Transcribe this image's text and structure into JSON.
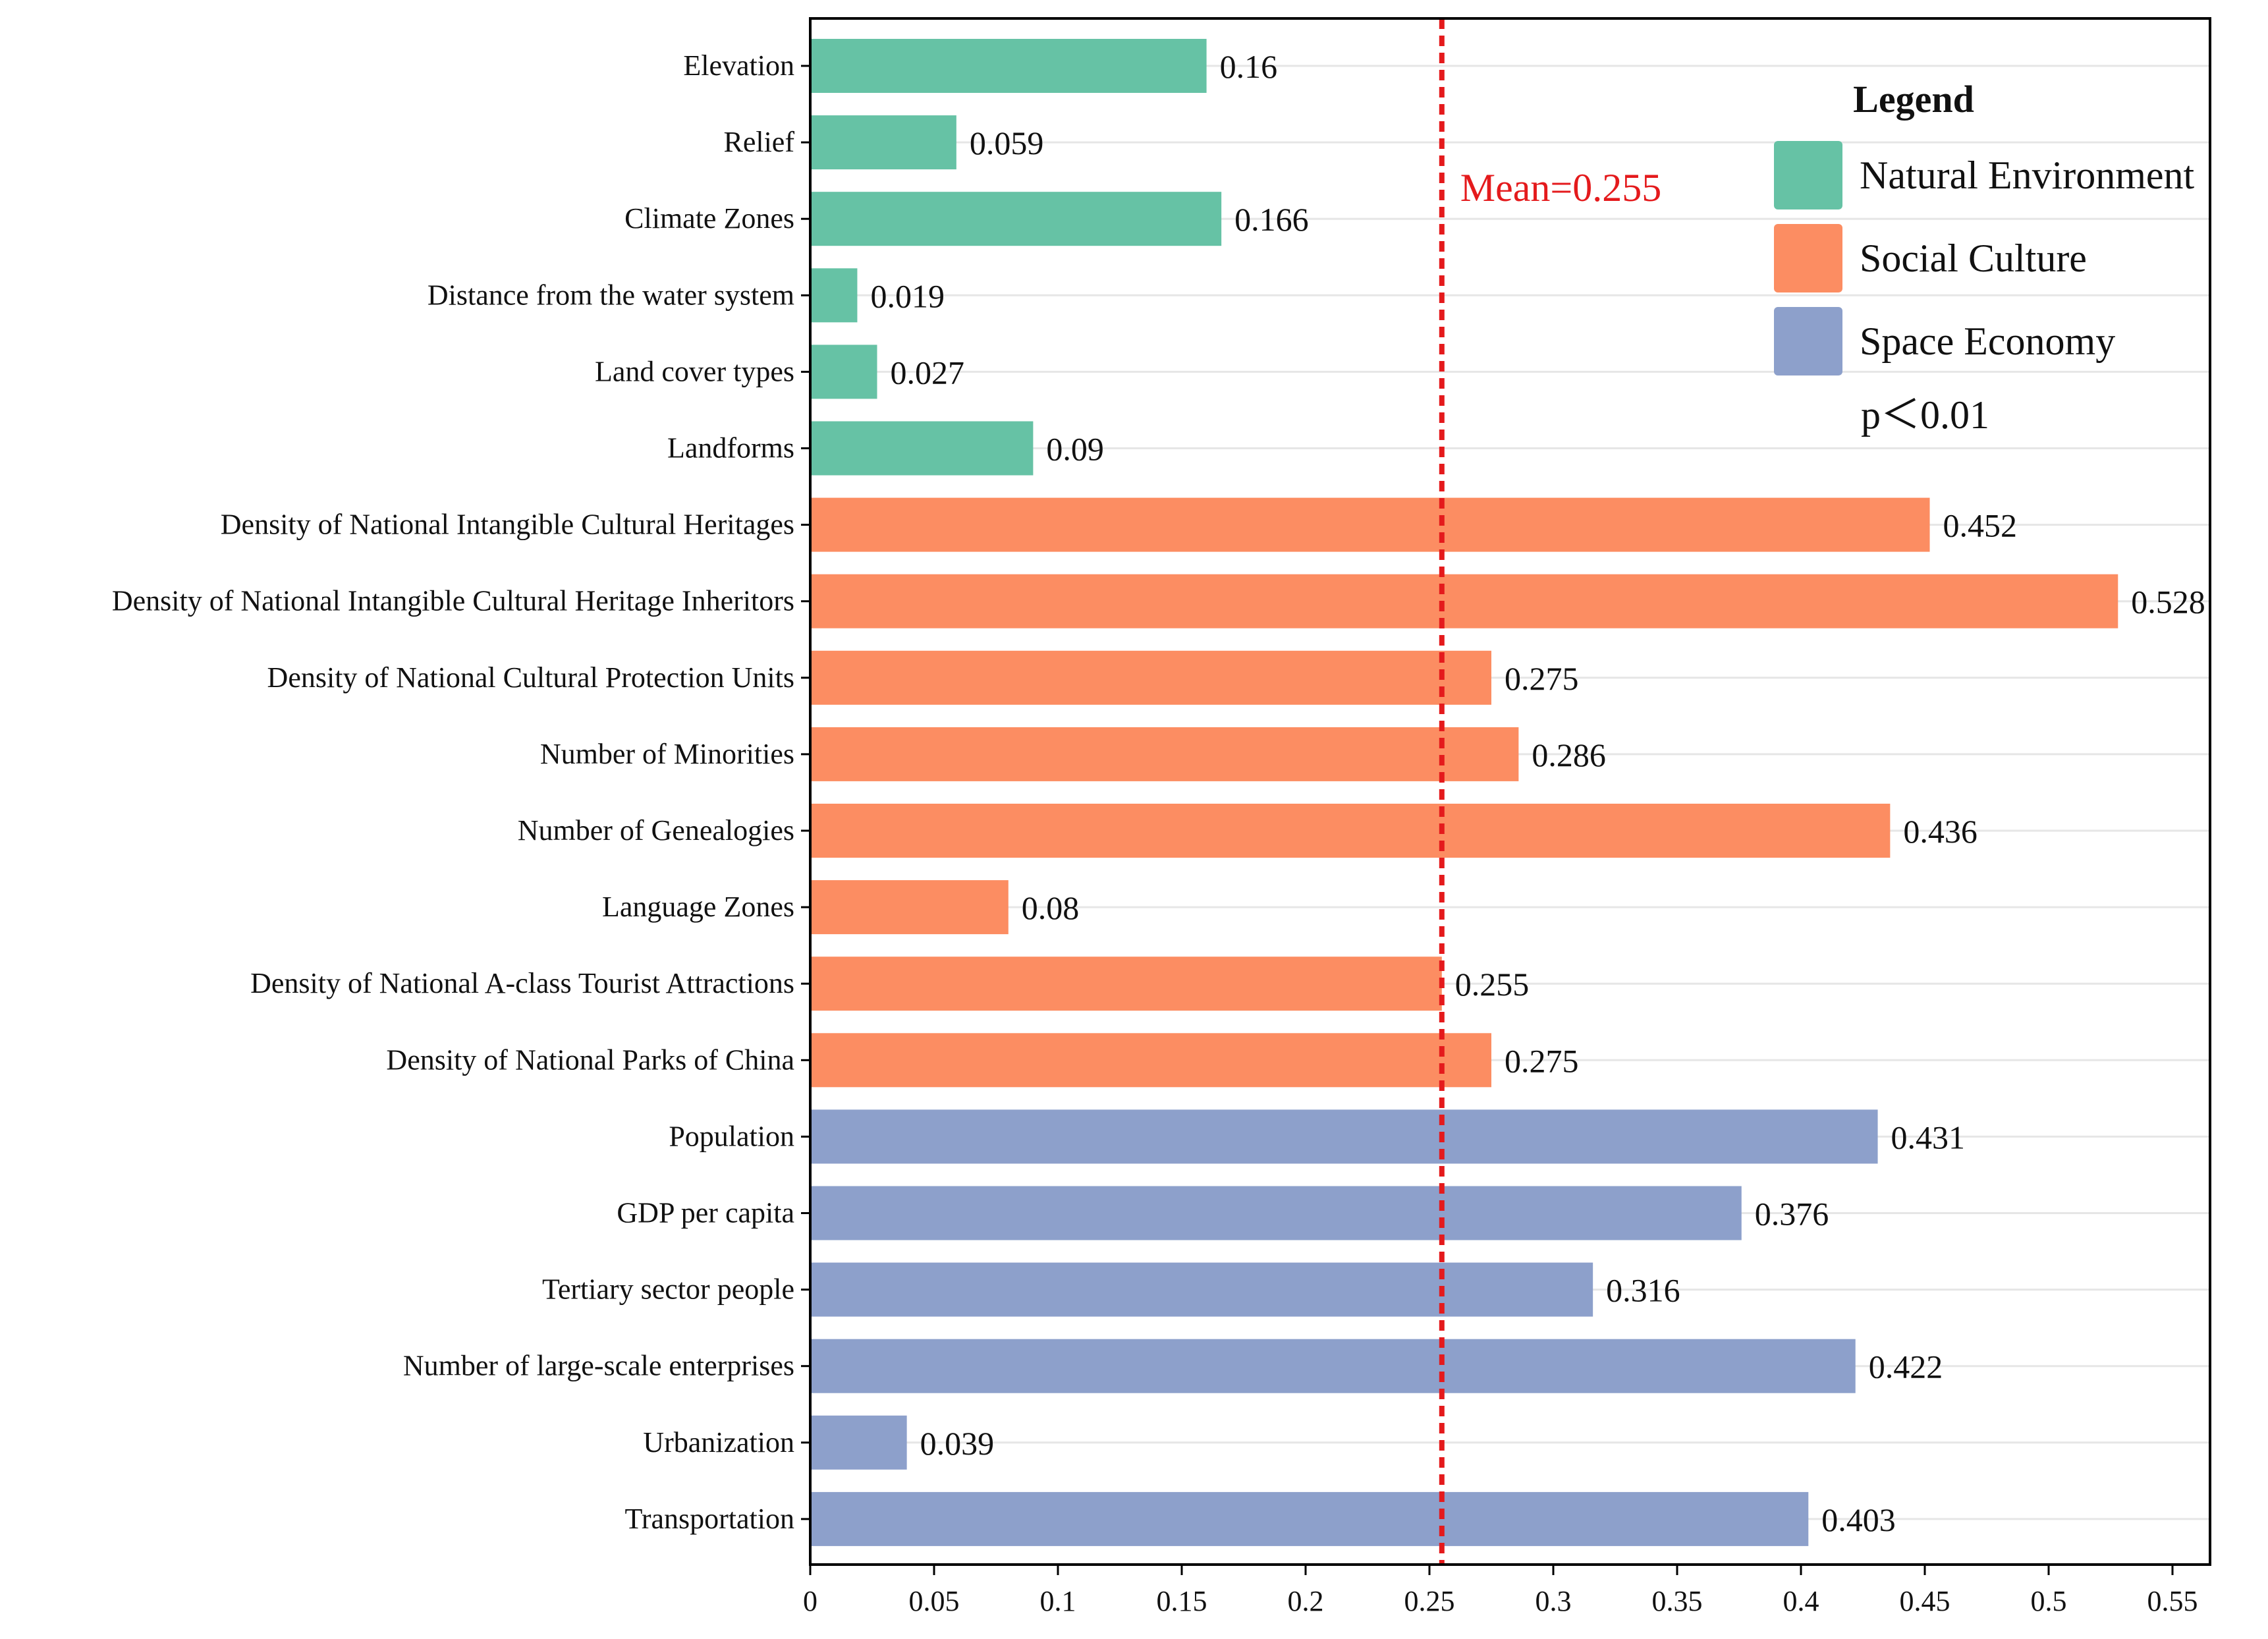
{
  "chart_data": {
    "type": "bar",
    "orientation": "horizontal",
    "title": "",
    "xlabel": "",
    "ylabel": "",
    "xlim": [
      0,
      0.565
    ],
    "xticks": [
      "0",
      "0.05",
      "0.1",
      "0.15",
      "0.2",
      "0.25",
      "0.3",
      "0.35",
      "0.4",
      "0.45",
      "0.5",
      "0.55"
    ],
    "grid": "horizontal lines",
    "groups": [
      {
        "name": "Natural Environment",
        "color": "#66c2a5"
      },
      {
        "name": "Social Culture",
        "color": "#fc8d62"
      },
      {
        "name": "Space Economy",
        "color": "#8da0cb"
      }
    ],
    "bars": [
      {
        "label": "Elevation",
        "value": 0.16,
        "value_label": "0.16",
        "group": 0
      },
      {
        "label": "Relief",
        "value": 0.059,
        "value_label": "0.059",
        "group": 0
      },
      {
        "label": "Climate Zones",
        "value": 0.166,
        "value_label": "0.166",
        "group": 0
      },
      {
        "label": "Distance from the water system",
        "value": 0.019,
        "value_label": "0.019",
        "group": 0
      },
      {
        "label": "Land cover types",
        "value": 0.027,
        "value_label": "0.027",
        "group": 0
      },
      {
        "label": "Landforms",
        "value": 0.09,
        "value_label": "0.09",
        "group": 0
      },
      {
        "label": "Density of National Intangible Cultural Heritages",
        "value": 0.452,
        "value_label": "0.452",
        "group": 1
      },
      {
        "label": "Density of National Intangible Cultural Heritage Inheritors",
        "value": 0.528,
        "value_label": "0.528",
        "group": 1
      },
      {
        "label": "Density of National Cultural Protection Units",
        "value": 0.275,
        "value_label": "0.275",
        "group": 1
      },
      {
        "label": "Number of Minorities",
        "value": 0.286,
        "value_label": "0.286",
        "group": 1
      },
      {
        "label": "Number of Genealogies",
        "value": 0.436,
        "value_label": "0.436",
        "group": 1
      },
      {
        "label": "Language Zones",
        "value": 0.08,
        "value_label": "0.08",
        "group": 1
      },
      {
        "label": "Density of National A-class Tourist Attractions",
        "value": 0.255,
        "value_label": "0.255",
        "group": 1
      },
      {
        "label": "Density of National Parks of China",
        "value": 0.275,
        "value_label": "0.275",
        "group": 1
      },
      {
        "label": "Population",
        "value": 0.431,
        "value_label": "0.431",
        "group": 2
      },
      {
        "label": "GDP per capita",
        "value": 0.376,
        "value_label": "0.376",
        "group": 2
      },
      {
        "label": "Tertiary sector people",
        "value": 0.316,
        "value_label": "0.316",
        "group": 2
      },
      {
        "label": "Number of large-scale enterprises",
        "value": 0.422,
        "value_label": "0.422",
        "group": 2
      },
      {
        "label": "Urbanization",
        "value": 0.039,
        "value_label": "0.039",
        "group": 2
      },
      {
        "label": "Transportation",
        "value": 0.403,
        "value_label": "0.403",
        "group": 2
      }
    ],
    "mean": {
      "value": 0.255,
      "label": "Mean=0.255",
      "color": "#e41a1c"
    },
    "legend": {
      "title": "Legend",
      "note": "p＜0.01",
      "placement": "top-right"
    }
  }
}
